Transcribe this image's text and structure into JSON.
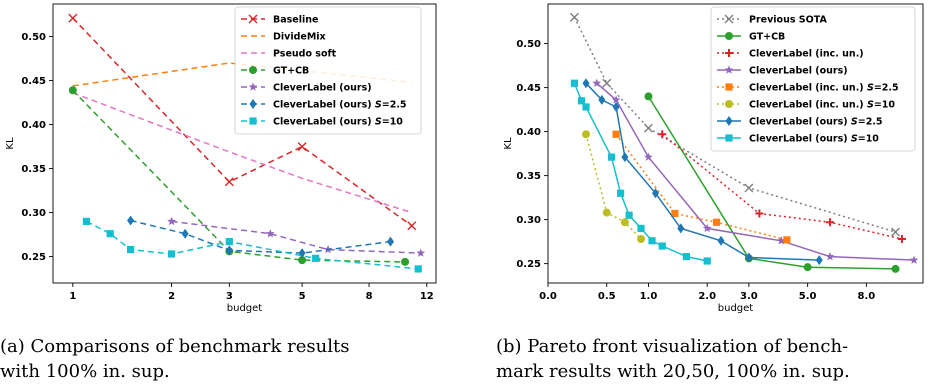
{
  "chart_data": [
    {
      "type": "line",
      "xlabel": "budget",
      "ylabel": "KL",
      "xscale": "log",
      "xlim": [
        0.87,
        12.8
      ],
      "ylim": [
        0.22,
        0.537
      ],
      "xticks": [
        1,
        2,
        3,
        5,
        8,
        12
      ],
      "xtick_labels": [
        "1",
        "2",
        "3",
        "5",
        "8",
        "12"
      ],
      "yticks": [
        0.25,
        0.3,
        0.35,
        0.4,
        0.45,
        0.5
      ],
      "ytick_labels": [
        "0.25",
        "0.30",
        "0.35",
        "0.40",
        "0.45",
        "0.50"
      ],
      "grid": false,
      "legend_position": "top-right",
      "caption_lines": [
        "(a) Comparisons of benchmark results",
        "with 100% in. sup."
      ],
      "series": [
        {
          "name": "Baseline",
          "color": "#d62728",
          "dash": "6,4",
          "marker": "x",
          "x": [
            1,
            3,
            5,
            10.8
          ],
          "y": [
            0.521,
            0.335,
            0.375,
            0.285
          ]
        },
        {
          "name": "DivideMix",
          "color": "#ff7f0e",
          "dash": "6,4",
          "marker": "none",
          "x": [
            1,
            3,
            10.8
          ],
          "y": [
            0.444,
            0.47,
            0.448
          ]
        },
        {
          "name": "Pseudo soft",
          "color": "#e377c2",
          "dash": "6,4",
          "marker": "none",
          "x": [
            1,
            3,
            5,
            10.8
          ],
          "y": [
            0.436,
            0.369,
            0.339,
            0.3
          ]
        },
        {
          "name": "GT+CB",
          "color": "#2ca02c",
          "dash": "6,4",
          "marker": "circle",
          "x": [
            1,
            3,
            5,
            10.3
          ],
          "y": [
            0.439,
            0.256,
            0.246,
            0.244
          ]
        },
        {
          "name": "CleverLabel (ours)",
          "color": "#9467bd",
          "dash": "6,4",
          "marker": "star",
          "x": [
            2,
            4,
            6,
            11.5
          ],
          "y": [
            0.29,
            0.276,
            0.258,
            0.254
          ]
        },
        {
          "name": "CleverLabel (ours) S=2.5",
          "color": "#1f77b4",
          "dash": "6,4",
          "marker": "diamond",
          "x": [
            1.5,
            2.2,
            3,
            5,
            9.3
          ],
          "y": [
            0.291,
            0.276,
            0.257,
            0.254,
            0.267
          ]
        },
        {
          "name": "CleverLabel (ours) S=10",
          "color": "#17becf",
          "dash": "6,4",
          "marker": "square",
          "x": [
            1.1,
            1.3,
            1.5,
            2,
            3,
            5.5,
            11.3
          ],
          "y": [
            0.29,
            0.276,
            0.258,
            0.253,
            0.267,
            0.248,
            0.236
          ]
        }
      ]
    },
    {
      "type": "line",
      "xlabel": "budget",
      "ylabel": "KL",
      "xscale": "log1p",
      "xlim": [
        0,
        12.3
      ],
      "ylim": [
        0.228,
        0.545
      ],
      "xticks": [
        0,
        0.5,
        1,
        2,
        3,
        5,
        8
      ],
      "xtick_labels": [
        "0.0",
        "0.5",
        "1.0",
        "2.0",
        "3.0",
        "5.0",
        "8.0"
      ],
      "yticks": [
        0.25,
        0.3,
        0.35,
        0.4,
        0.45,
        0.5
      ],
      "ytick_labels": [
        "0.25",
        "0.30",
        "0.35",
        "0.40",
        "0.45",
        "0.50"
      ],
      "grid": false,
      "legend_position": "top-right",
      "caption_lines": [
        "(b) Pareto front visualization of bench-",
        "mark results with 20,50, 100% in. sup."
      ],
      "series": [
        {
          "name": "Previous SOTA",
          "color": "#7f7f7f",
          "dash": "2,3",
          "marker": "x",
          "x": [
            0.2,
            0.5,
            1,
            3,
            10
          ],
          "y": [
            0.53,
            0.455,
            0.404,
            0.336,
            0.286
          ]
        },
        {
          "name": "GT+CB",
          "color": "#2ca02c",
          "dash": "",
          "marker": "circle",
          "x": [
            1,
            3,
            5,
            10
          ],
          "y": [
            0.44,
            0.256,
            0.246,
            0.244
          ]
        },
        {
          "name": "CleverLabel (inc. un.)",
          "color": "#d62728",
          "dash": "2,3",
          "marker": "plus",
          "x": [
            1.2,
            3.3,
            6,
            10.5
          ],
          "y": [
            0.397,
            0.307,
            0.297,
            0.278
          ]
        },
        {
          "name": "CleverLabel (ours)",
          "color": "#9467bd",
          "dash": "",
          "marker": "star",
          "x": [
            0.4,
            0.6,
            1,
            2,
            4,
            6,
            11.5
          ],
          "y": [
            0.455,
            0.436,
            0.371,
            0.29,
            0.276,
            0.258,
            0.254
          ]
        },
        {
          "name": "CleverLabel (inc. un.) S=2.5",
          "color": "#ff7f0e",
          "dash": "2,3",
          "marker": "square",
          "x": [
            0.6,
            1.4,
            2.2,
            4.2
          ],
          "y": [
            0.397,
            0.307,
            0.297,
            0.277
          ]
        },
        {
          "name": "CleverLabel (inc. un.) S=10",
          "color": "#bcbd22",
          "dash": "2,3",
          "marker": "circle",
          "x": [
            0.3,
            0.5,
            0.7,
            0.9
          ],
          "y": [
            0.397,
            0.308,
            0.297,
            0.278
          ]
        },
        {
          "name": "CleverLabel (ours) S=2.5",
          "color": "#1f77b4",
          "dash": "",
          "marker": "diamond",
          "x": [
            0.3,
            0.45,
            0.6,
            0.7,
            1.1,
            1.5,
            2.3,
            3,
            5.5
          ],
          "y": [
            0.455,
            0.436,
            0.428,
            0.371,
            0.33,
            0.29,
            0.276,
            0.257,
            0.254
          ]
        },
        {
          "name": "CleverLabel (ours) S=10",
          "color": "#17becf",
          "dash": "",
          "marker": "square",
          "x": [
            0.2,
            0.26,
            0.3,
            0.55,
            0.65,
            0.75,
            0.9,
            1.05,
            1.2,
            1.6,
            2
          ],
          "y": [
            0.455,
            0.435,
            0.428,
            0.371,
            0.33,
            0.305,
            0.29,
            0.276,
            0.27,
            0.258,
            0.253
          ]
        }
      ]
    }
  ]
}
